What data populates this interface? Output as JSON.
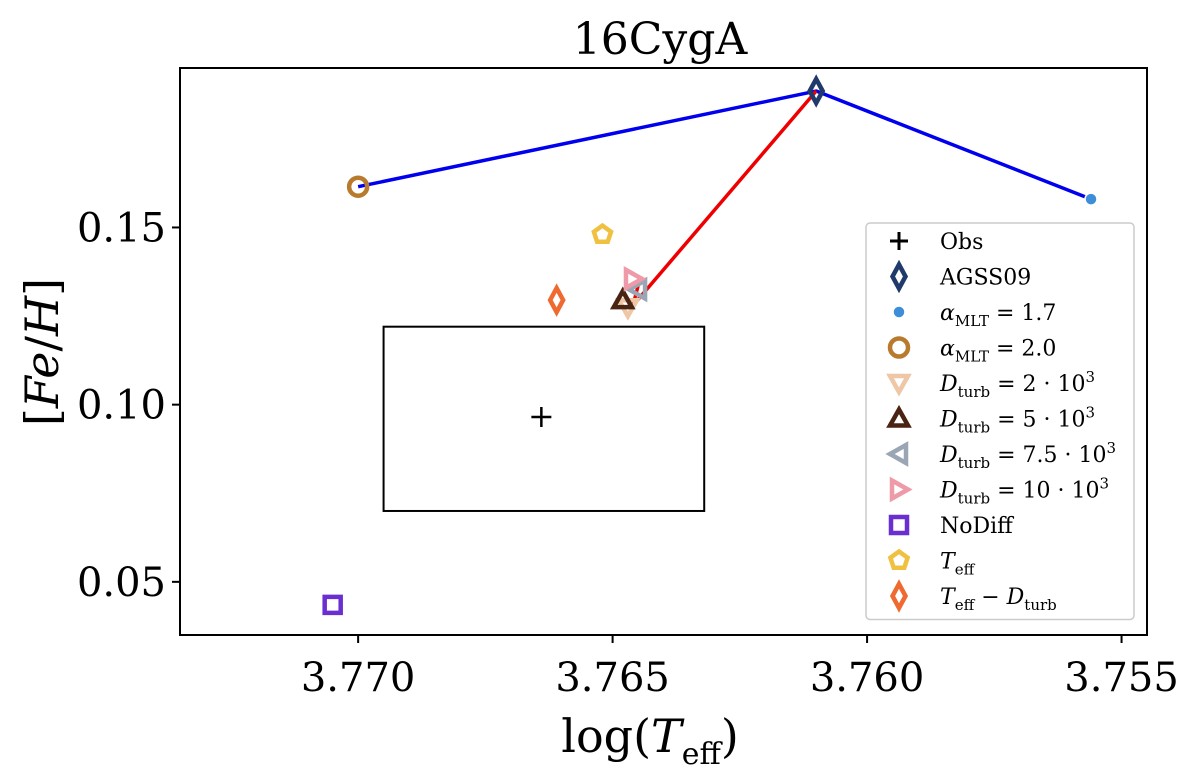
{
  "chart_data": {
    "type": "scatter",
    "title": "16CygA",
    "xlabel": "log(T_eff)",
    "ylabel": "[Fe/H]",
    "xlim": [
      3.7735,
      3.7545
    ],
    "ylim": [
      0.035,
      0.195
    ],
    "x_inverted": true,
    "xticks": [
      3.77,
      3.765,
      3.76,
      3.755
    ],
    "xtick_labels": [
      "3.770",
      "3.765",
      "3.760",
      "3.755"
    ],
    "yticks": [
      0.05,
      0.1,
      0.15
    ],
    "ytick_labels": [
      "0.05",
      "0.10",
      "0.15"
    ],
    "observation": {
      "label": "Obs",
      "x": 3.7664,
      "y": 0.0965,
      "box": {
        "x_min": 3.7695,
        "x_max": 3.7632,
        "y_min": 0.07,
        "y_max": 0.122
      }
    },
    "series": [
      {
        "name": "AGSS09",
        "label_parts": [
          {
            "t": "AGSS09",
            "s": "n"
          }
        ],
        "marker": "diamond",
        "color": "#1f3a6b",
        "filled": false,
        "x": 3.761,
        "y": 0.1885
      },
      {
        "name": "alpha_MLT = 1.7",
        "label_parts": [
          {
            "t": "α",
            "s": "i"
          },
          {
            "t": "MLT",
            "s": "sub"
          },
          {
            "t": " = 1.7",
            "s": "n"
          }
        ],
        "marker": "circle-small",
        "color": "#3d8ed8",
        "filled": true,
        "x": 3.7556,
        "y": 0.158
      },
      {
        "name": "alpha_MLT = 2.0",
        "label_parts": [
          {
            "t": "α",
            "s": "i"
          },
          {
            "t": "MLT",
            "s": "sub"
          },
          {
            "t": " = 2.0",
            "s": "n"
          }
        ],
        "marker": "circle",
        "color": "#b87a2c",
        "filled": false,
        "x": 3.77,
        "y": 0.1615
      },
      {
        "name": "D_turb = 2·10^3",
        "label_parts": [
          {
            "t": "D",
            "s": "i"
          },
          {
            "t": "turb",
            "s": "sub"
          },
          {
            "t": " = 2 · 10",
            "s": "n"
          },
          {
            "t": "3",
            "s": "sup"
          }
        ],
        "marker": "triangle-down",
        "color": "#efc6a6",
        "filled": false,
        "x": 3.7647,
        "y": 0.1275
      },
      {
        "name": "D_turb = 5·10^3",
        "label_parts": [
          {
            "t": "D",
            "s": "i"
          },
          {
            "t": "turb",
            "s": "sub"
          },
          {
            "t": " = 5 · 10",
            "s": "n"
          },
          {
            "t": "3",
            "s": "sup"
          }
        ],
        "marker": "triangle-up",
        "color": "#4a2412",
        "filled": false,
        "x": 3.7648,
        "y": 0.1295
      },
      {
        "name": "D_turb = 7.5·10^3",
        "label_parts": [
          {
            "t": "D",
            "s": "i"
          },
          {
            "t": "turb",
            "s": "sub"
          },
          {
            "t": " = 7.5 · 10",
            "s": "n"
          },
          {
            "t": "3",
            "s": "sup"
          }
        ],
        "marker": "triangle-left",
        "color": "#9aa6b4",
        "filled": false,
        "x": 3.7645,
        "y": 0.1325
      },
      {
        "name": "D_turb = 10·10^3",
        "label_parts": [
          {
            "t": "D",
            "s": "i"
          },
          {
            "t": "turb",
            "s": "sub"
          },
          {
            "t": " = 10 · 10",
            "s": "n"
          },
          {
            "t": "3",
            "s": "sup"
          }
        ],
        "marker": "triangle-right",
        "color": "#ee9aa8",
        "filled": false,
        "x": 3.7646,
        "y": 0.1355
      },
      {
        "name": "NoDiff",
        "label_parts": [
          {
            "t": "NoDiff",
            "s": "n"
          }
        ],
        "marker": "square",
        "color": "#6a2fd0",
        "filled": false,
        "x": 3.7705,
        "y": 0.0435
      },
      {
        "name": "T_eff",
        "label_parts": [
          {
            "t": "T",
            "s": "i"
          },
          {
            "t": "eff",
            "s": "sub"
          }
        ],
        "marker": "pentagon",
        "color": "#f0c040",
        "filled": false,
        "x": 3.7652,
        "y": 0.148
      },
      {
        "name": "T_eff - D_turb",
        "label_parts": [
          {
            "t": "T",
            "s": "i"
          },
          {
            "t": "eff",
            "s": "sub"
          },
          {
            "t": " − ",
            "s": "n"
          },
          {
            "t": "D",
            "s": "i"
          },
          {
            "t": "turb",
            "s": "sub"
          }
        ],
        "marker": "diamond",
        "color": "#ee6a30",
        "filled": false,
        "x": 3.7661,
        "y": 0.1295
      }
    ],
    "lines": [
      {
        "name": "blue-path",
        "color": "#0000ee",
        "points": [
          [
            3.77,
            0.1615
          ],
          [
            3.761,
            0.1885
          ],
          [
            3.7556,
            0.158
          ]
        ]
      },
      {
        "name": "red-path",
        "color": "#ee0000",
        "points": [
          [
            3.761,
            0.1885
          ],
          [
            3.7646,
            0.128
          ],
          [
            3.7645,
            0.1335
          ]
        ]
      }
    ],
    "legend": {
      "placement": "lower-right",
      "entries_title": "Obs"
    }
  }
}
